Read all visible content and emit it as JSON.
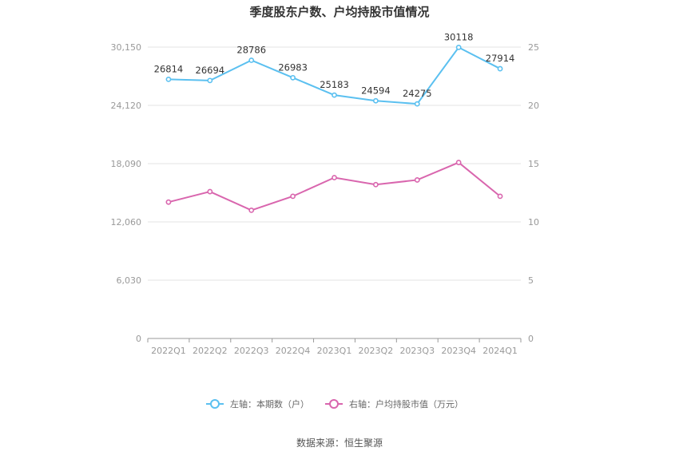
{
  "title": "季度股东户数、户均持股市值情况",
  "source": "数据来源：恒生聚源",
  "chart_data": {
    "type": "line",
    "categories": [
      "2022Q1",
      "2022Q2",
      "2022Q3",
      "2022Q4",
      "2023Q1",
      "2023Q2",
      "2023Q3",
      "2023Q4",
      "2024Q1"
    ],
    "left_axis": {
      "ylim": [
        0,
        30150
      ],
      "ticks": [
        "0",
        "6,030",
        "12,060",
        "18,090",
        "24,120",
        "30,150"
      ]
    },
    "right_axis": {
      "ylim": [
        0,
        25
      ],
      "ticks": [
        "0",
        "5",
        "10",
        "15",
        "20",
        "25"
      ]
    },
    "grid": true,
    "legend_position": "bottom",
    "series": [
      {
        "name": "左轴：本期数（户）",
        "axis": "left",
        "color": "#5bc0f0",
        "values": [
          26814,
          26694,
          28786,
          26983,
          25183,
          24594,
          24275,
          30118,
          27914
        ],
        "labels": [
          "26814",
          "26694",
          "28786",
          "26983",
          "25183",
          "24594",
          "24275",
          "30118",
          "27914"
        ]
      },
      {
        "name": "右轴：户均持股市值（万元）",
        "axis": "right",
        "color": "#d966ae",
        "values": [
          11.7,
          12.6,
          11.0,
          12.2,
          13.8,
          13.2,
          13.6,
          15.1,
          12.2
        ]
      }
    ]
  }
}
